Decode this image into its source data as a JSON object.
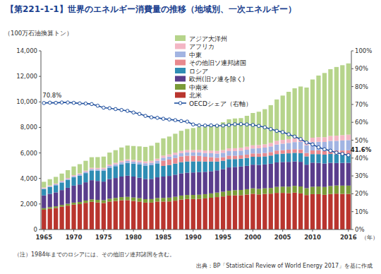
{
  "chart_data": {
    "type": "bar",
    "title": "【第221-1-1】世界のエネルギー消費量の推移（地域別、一次エネルギー）",
    "y_label": "（100万石油換算トン）",
    "x_label": "（年）",
    "note": "（注）1984年までのロシアには、その他旧ソ連邦諸国を含む。",
    "source": "出典：BP「Statistical Review of World Energy 2017」を基に作成",
    "annotations": [
      "70.8%",
      "41.6%"
    ],
    "stacked": true,
    "grid": false,
    "legend": "top",
    "categories": [
      "1965",
      null,
      null,
      null,
      null,
      "1970",
      null,
      null,
      null,
      null,
      "1975",
      null,
      null,
      null,
      null,
      "1980",
      null,
      null,
      null,
      null,
      "1985",
      null,
      null,
      null,
      null,
      "1990",
      null,
      null,
      null,
      null,
      "1995",
      null,
      null,
      null,
      null,
      "2000",
      null,
      null,
      null,
      null,
      "2005",
      null,
      null,
      null,
      null,
      "2010",
      null,
      null,
      null,
      null,
      null,
      "2016"
    ],
    "ylim": [
      0,
      14000
    ],
    "yticks": [
      0,
      {
        "value": 2000,
        "label": "2,000"
      },
      {
        "value": 4000,
        "label": "4,000"
      },
      {
        "value": 6000,
        "label": "6,000"
      },
      {
        "value": 8000,
        "label": "8,000"
      },
      {
        "value": 10000,
        "label": "10,000"
      },
      {
        "value": 12000,
        "label": "12,000"
      },
      {
        "value": 14000,
        "label": "14,000"
      }
    ],
    "y2lim": [
      0,
      100
    ],
    "y2ticks": [
      {
        "value": 0,
        "label": "0%"
      },
      {
        "value": 10,
        "label": "10%"
      },
      {
        "value": 20,
        "label": "20%"
      },
      {
        "value": 30,
        "label": "30%"
      },
      {
        "value": 40,
        "label": "40%"
      },
      {
        "value": 50,
        "label": "50%"
      },
      {
        "value": 60,
        "label": "60%"
      },
      {
        "value": 70,
        "label": "70%"
      },
      {
        "value": 80,
        "label": "80%"
      },
      {
        "value": 90,
        "label": "90%"
      },
      {
        "value": 100,
        "label": "100%"
      }
    ],
    "series": [
      {
        "name": "北米",
        "type": "bar",
        "color": "#b9352e",
        "values": [
          1550,
          1630,
          1690,
          1790,
          1870,
          1950,
          1990,
          2090,
          2170,
          2120,
          2080,
          2190,
          2240,
          2290,
          2300,
          2240,
          2190,
          2110,
          2110,
          2190,
          2190,
          2200,
          2260,
          2350,
          2390,
          2390,
          2400,
          2440,
          2490,
          2540,
          2590,
          2660,
          2680,
          2690,
          2740,
          2800,
          2750,
          2790,
          2810,
          2870,
          2870,
          2850,
          2890,
          2830,
          2700,
          2770,
          2770,
          2720,
          2780,
          2810,
          2790,
          2790
        ]
      },
      {
        "name": "中南米",
        "type": "bar",
        "color": "#7b9b38",
        "values": [
          120,
          125,
          130,
          140,
          150,
          160,
          170,
          180,
          195,
          205,
          215,
          225,
          235,
          250,
          260,
          270,
          270,
          270,
          275,
          280,
          290,
          300,
          305,
          310,
          315,
          320,
          325,
          330,
          340,
          355,
          370,
          385,
          400,
          410,
          420,
          430,
          435,
          440,
          445,
          470,
          490,
          510,
          530,
          545,
          540,
          580,
          600,
          615,
          630,
          640,
          650,
          650
        ]
      },
      {
        "name": "欧州(旧ソ連を除く)",
        "type": "bar",
        "color": "#5a3d8c",
        "values": [
          1000,
          1040,
          1090,
          1160,
          1250,
          1330,
          1370,
          1430,
          1500,
          1480,
          1460,
          1540,
          1560,
          1610,
          1660,
          1640,
          1600,
          1580,
          1580,
          1620,
          1670,
          1700,
          1730,
          1740,
          1750,
          1760,
          1770,
          1750,
          1740,
          1740,
          1770,
          1820,
          1820,
          1840,
          1830,
          1850,
          1880,
          1870,
          1900,
          1920,
          1930,
          1940,
          1920,
          1930,
          1840,
          1890,
          1850,
          1840,
          1820,
          1760,
          1780,
          1790
        ]
      },
      {
        "name": "ロシア",
        "type": "bar",
        "color": "#2f8db4",
        "values": [
          500,
          530,
          560,
          590,
          620,
          650,
          690,
          720,
          760,
          800,
          850,
          890,
          930,
          960,
          990,
          1010,
          1030,
          1050,
          1070,
          1090,
          830,
          850,
          870,
          880,
          880,
          870,
          850,
          800,
          760,
          690,
          660,
          650,
          620,
          610,
          620,
          620,
          630,
          630,
          640,
          650,
          650,
          670,
          670,
          680,
          650,
          670,
          690,
          690,
          690,
          680,
          670,
          675
        ]
      },
      {
        "name": "その他旧ソ連邦諸国",
        "type": "bar",
        "color": "#e8898e",
        "values": [
          null,
          null,
          null,
          null,
          null,
          null,
          null,
          null,
          null,
          null,
          null,
          null,
          null,
          null,
          null,
          null,
          null,
          null,
          null,
          null,
          420,
          430,
          440,
          450,
          450,
          440,
          430,
          380,
          340,
          300,
          280,
          275,
          265,
          260,
          260,
          260,
          265,
          265,
          270,
          275,
          280,
          285,
          285,
          290,
          270,
          285,
          295,
          295,
          295,
          300,
          300,
          300
        ]
      },
      {
        "name": "中東",
        "type": "bar",
        "color": "#a2b4e2",
        "values": [
          60,
          65,
          70,
          75,
          80,
          90,
          95,
          105,
          115,
          120,
          125,
          135,
          145,
          155,
          160,
          160,
          170,
          180,
          195,
          210,
          225,
          235,
          245,
          255,
          260,
          260,
          275,
          290,
          310,
          325,
          340,
          350,
          360,
          370,
          380,
          390,
          405,
          425,
          445,
          475,
          505,
          530,
          555,
          590,
          610,
          650,
          670,
          700,
          730,
          760,
          790,
          800
        ]
      },
      {
        "name": "アフリカ",
        "type": "bar",
        "color": "#f3b6c4",
        "values": [
          60,
          62,
          65,
          68,
          72,
          80,
          85,
          90,
          95,
          100,
          105,
          112,
          118,
          124,
          130,
          135,
          145,
          150,
          155,
          160,
          165,
          170,
          175,
          180,
          185,
          190,
          195,
          200,
          205,
          210,
          215,
          220,
          225,
          230,
          240,
          250,
          255,
          260,
          275,
          290,
          300,
          305,
          315,
          330,
          335,
          350,
          360,
          375,
          390,
          405,
          415,
          430
        ]
      },
      {
        "name": "アジア大洋州",
        "type": "bar",
        "color": "#b6d48b",
        "values": [
          450,
          490,
          520,
          560,
          610,
          680,
          720,
          770,
          830,
          850,
          880,
          940,
          990,
          1040,
          1080,
          1090,
          1110,
          1130,
          1180,
          1250,
          1350,
          1400,
          1480,
          1570,
          1650,
          1720,
          1790,
          1870,
          1960,
          2060,
          2180,
          2280,
          2330,
          2320,
          2420,
          2530,
          2610,
          2750,
          2960,
          3240,
          3470,
          3700,
          3900,
          4010,
          4180,
          4560,
          4830,
          5030,
          5230,
          5380,
          5480,
          5580
        ]
      },
      {
        "name": "OECDシェア（右軸）",
        "type": "line",
        "axis": "y2",
        "color": "#1f4f9e",
        "marker": "circle",
        "line_style": "solid",
        "values": [
          70.8,
          71.0,
          70.9,
          71.1,
          71.1,
          70.9,
          70.6,
          70.5,
          70.2,
          69.3,
          68.2,
          67.9,
          67.4,
          66.9,
          66.4,
          65.5,
          64.7,
          63.6,
          62.8,
          62.5,
          62.0,
          61.6,
          61.2,
          60.7,
          60.4,
          58.8,
          58.3,
          58.2,
          58.3,
          58.1,
          58.2,
          58.5,
          58.9,
          59.0,
          58.8,
          58.5,
          58.0,
          57.2,
          56.2,
          55.2,
          54.5,
          53.3,
          52.0,
          50.6,
          48.7,
          47.6,
          46.0,
          44.9,
          44.1,
          43.0,
          42.3,
          41.6
        ]
      }
    ]
  }
}
